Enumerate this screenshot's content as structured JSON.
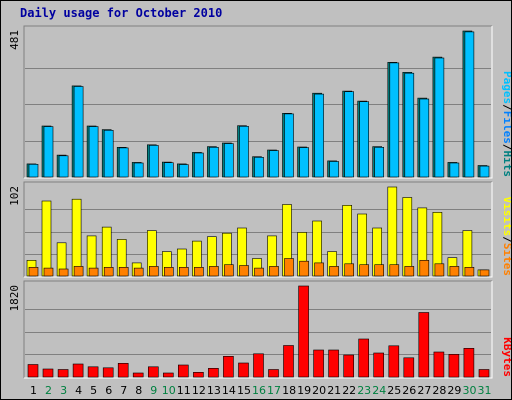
{
  "chart_data": {
    "type": "bar",
    "title": "Daily usage for October 2010",
    "categories": [
      "1",
      "2",
      "3",
      "4",
      "5",
      "6",
      "7",
      "8",
      "9",
      "10",
      "11",
      "12",
      "13",
      "14",
      "15",
      "16",
      "17",
      "18",
      "19",
      "20",
      "21",
      "22",
      "23",
      "24",
      "25",
      "26",
      "27",
      "28",
      "29",
      "30",
      "31"
    ],
    "weekend_days": [
      "2",
      "3",
      "9",
      "10",
      "16",
      "17",
      "23",
      "24",
      "30",
      "31"
    ],
    "colors": {
      "pages": "#00c0ff",
      "files": "#0080ff",
      "hits": "#008080",
      "visits": "#ffff00",
      "sites": "#ff8000",
      "kbytes": "#ff0000",
      "weekday_label": "#000000",
      "weekend_label": "#008040"
    },
    "panels": [
      {
        "name": "pages-files-hits",
        "ymax_label": "481",
        "ylim": [
          0,
          481
        ],
        "legend": [
          {
            "name": "Pages",
            "color": "#00c0ff"
          },
          {
            "name": "Files",
            "color": "#0080ff"
          },
          {
            "name": "Hits",
            "color": "#008080"
          }
        ],
        "series": [
          {
            "name": "Hits",
            "values": [
              43,
              168,
              72,
              300,
              168,
              156,
              98,
              48,
              106,
              49,
              43,
              81,
              100,
              112,
              169,
              67,
              89,
              210,
              99,
              276,
              53,
              283,
              250,
              100,
              378,
              345,
              260,
              395,
              48,
              481,
              38
            ]
          },
          {
            "name": "Files",
            "values": [
              42,
              166,
              70,
              298,
              166,
              154,
              96,
              46,
              104,
              47,
              41,
              79,
              98,
              110,
              167,
              65,
              87,
              208,
              97,
              273,
              51,
              281,
              248,
              98,
              376,
              342,
              257,
              392,
              46,
              478,
              36
            ]
          }
        ]
      },
      {
        "name": "visits-sites",
        "ymax_label": "102",
        "ylim": [
          0,
          102
        ],
        "legend": [
          {
            "name": "Visits",
            "color": "#ffff00"
          },
          {
            "name": "Sites",
            "color": "#ff8000"
          }
        ],
        "series": [
          {
            "name": "Visits",
            "values": [
              18,
              86,
              38,
              88,
              46,
              56,
              42,
              15,
              52,
              28,
              31,
              40,
              45,
              49,
              55,
              20,
              46,
              82,
              50,
              63,
              28,
              81,
              71,
              55,
              102,
              90,
              78,
              73,
              21,
              52,
              7
            ]
          },
          {
            "name": "Sites",
            "values": [
              10,
              9,
              8,
              11,
              9,
              10,
              10,
              9,
              11,
              10,
              10,
              10,
              11,
              13,
              12,
              9,
              11,
              20,
              17,
              15,
              11,
              14,
              13,
              13,
              13,
              11,
              18,
              14,
              11,
              10,
              7
            ]
          }
        ]
      },
      {
        "name": "kbytes",
        "ymax_label": "1820",
        "ylim": [
          0,
          1820
        ],
        "legend": [
          {
            "name": "KBytes",
            "color": "#ff0000"
          }
        ],
        "series": [
          {
            "name": "KBytes",
            "values": [
              250,
              160,
              150,
              260,
              205,
              185,
              275,
              80,
              205,
              80,
              240,
              95,
              175,
              415,
              280,
              465,
              150,
              630,
              1820,
              540,
              540,
              440,
              760,
              480,
              625,
              385,
              1290,
              500,
              455,
              575,
              150
            ]
          }
        ]
      }
    ]
  }
}
